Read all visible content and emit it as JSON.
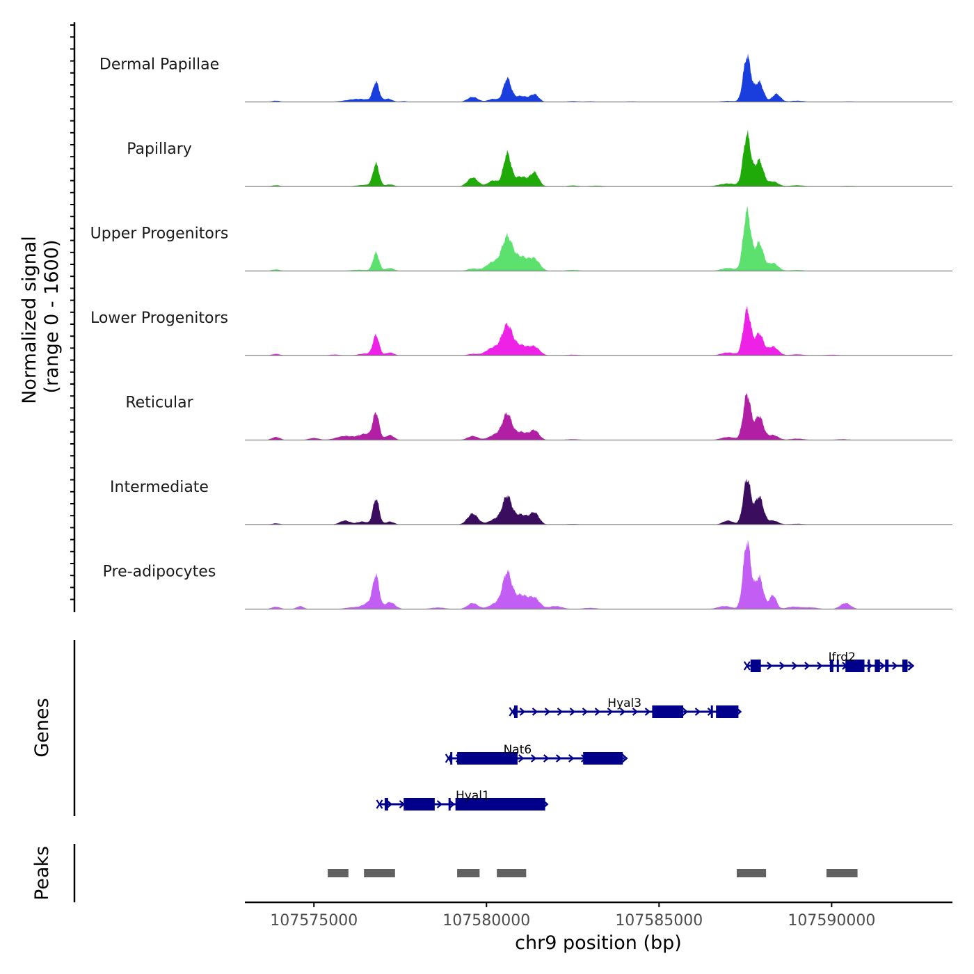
{
  "chart_data": {
    "type": "genome-browser-coverage",
    "chromosome": "chr9",
    "xlim": [
      107573000,
      107593500
    ],
    "coverage": {
      "ylabel_line1": "Normalized signal",
      "ylabel_line2": "(range 0 - 1600)",
      "yrange": [
        0,
        1600
      ],
      "tracks": [
        {
          "name": "Dermal Papillae",
          "color": "#1a3edd",
          "peaks": [
            [
              107573900,
              60,
              120
            ],
            [
              107576300,
              150,
              350
            ],
            [
              107576800,
              950,
              90
            ],
            [
              107577150,
              150,
              120
            ],
            [
              107577600,
              40,
              100
            ],
            [
              107579600,
              250,
              150
            ],
            [
              107580200,
              150,
              150
            ],
            [
              107580600,
              1150,
              110
            ],
            [
              107581000,
              300,
              200
            ],
            [
              107581400,
              350,
              120
            ],
            [
              107582500,
              40,
              150
            ],
            [
              107583000,
              30,
              150
            ],
            [
              107584200,
              25,
              200
            ],
            [
              107587000,
              50,
              200
            ],
            [
              107587550,
              2300,
              110
            ],
            [
              107587900,
              1000,
              120
            ],
            [
              107588400,
              400,
              120
            ],
            [
              107589000,
              60,
              200
            ],
            [
              107590500,
              25,
              200
            ]
          ]
        },
        {
          "name": "Papillary",
          "color": "#1faa0a",
          "peaks": [
            [
              107573900,
              60,
              120
            ],
            [
              107576500,
              80,
              250
            ],
            [
              107576800,
              1100,
              90
            ],
            [
              107577200,
              100,
              120
            ],
            [
              107579600,
              450,
              150
            ],
            [
              107580200,
              300,
              150
            ],
            [
              107580600,
              1600,
              110
            ],
            [
              107581000,
              500,
              200
            ],
            [
              107581400,
              650,
              120
            ],
            [
              107582500,
              50,
              150
            ],
            [
              107583200,
              40,
              200
            ],
            [
              107587000,
              150,
              250
            ],
            [
              107587550,
              2600,
              110
            ],
            [
              107587900,
              1300,
              120
            ],
            [
              107588300,
              250,
              150
            ],
            [
              107589000,
              60,
              200
            ],
            [
              107590500,
              30,
              200
            ]
          ]
        },
        {
          "name": "Upper Progenitors",
          "color": "#5ce06e",
          "peaks": [
            [
              107573900,
              80,
              120
            ],
            [
              107576300,
              60,
              250
            ],
            [
              107576800,
              900,
              90
            ],
            [
              107577200,
              150,
              120
            ],
            [
              107579600,
              120,
              150
            ],
            [
              107580200,
              450,
              200
            ],
            [
              107580600,
              1600,
              150
            ],
            [
              107581000,
              700,
              200
            ],
            [
              107581400,
              550,
              150
            ],
            [
              107582500,
              50,
              200
            ],
            [
              107587000,
              150,
              200
            ],
            [
              107587550,
              3000,
              110
            ],
            [
              107587900,
              1400,
              120
            ],
            [
              107588300,
              400,
              150
            ],
            [
              107589000,
              50,
              200
            ]
          ]
        },
        {
          "name": "Lower Progenitors",
          "color": "#ee22e6",
          "peaks": [
            [
              107573900,
              80,
              120
            ],
            [
              107575600,
              50,
              150
            ],
            [
              107576500,
              100,
              200
            ],
            [
              107576800,
              1000,
              90
            ],
            [
              107577200,
              150,
              120
            ],
            [
              107579600,
              80,
              150
            ],
            [
              107580200,
              400,
              200
            ],
            [
              107580600,
              1450,
              150
            ],
            [
              107581000,
              500,
              200
            ],
            [
              107581400,
              400,
              150
            ],
            [
              107582500,
              40,
              200
            ],
            [
              107587000,
              150,
              200
            ],
            [
              107587550,
              2300,
              110
            ],
            [
              107587900,
              1100,
              120
            ],
            [
              107588300,
              450,
              150
            ],
            [
              107589000,
              60,
              200
            ],
            [
              107590000,
              40,
              200
            ]
          ]
        },
        {
          "name": "Reticular",
          "color": "#b01fa4",
          "peaks": [
            [
              107573900,
              150,
              120
            ],
            [
              107575000,
              100,
              150
            ],
            [
              107575900,
              200,
              250
            ],
            [
              107576500,
              300,
              200
            ],
            [
              107576800,
              1300,
              90
            ],
            [
              107577200,
              250,
              120
            ],
            [
              107579600,
              200,
              150
            ],
            [
              107580300,
              300,
              200
            ],
            [
              107580600,
              1200,
              130
            ],
            [
              107581000,
              400,
              200
            ],
            [
              107581400,
              450,
              130
            ],
            [
              107582500,
              40,
              200
            ],
            [
              107587000,
              150,
              200
            ],
            [
              107587550,
              2300,
              110
            ],
            [
              107587900,
              1200,
              120
            ],
            [
              107588300,
              250,
              150
            ],
            [
              107589000,
              70,
              200
            ],
            [
              107590300,
              40,
              200
            ]
          ]
        },
        {
          "name": "Intermediate",
          "color": "#3a0d5e",
          "peaks": [
            [
              107573900,
              60,
              120
            ],
            [
              107575900,
              200,
              150
            ],
            [
              107576400,
              150,
              150
            ],
            [
              107576800,
              1300,
              90
            ],
            [
              107577200,
              150,
              120
            ],
            [
              107579600,
              550,
              150
            ],
            [
              107580300,
              300,
              200
            ],
            [
              107580600,
              1300,
              130
            ],
            [
              107581000,
              500,
              200
            ],
            [
              107581400,
              550,
              130
            ],
            [
              107582500,
              30,
              200
            ],
            [
              107587000,
              200,
              150
            ],
            [
              107587550,
              2300,
              110
            ],
            [
              107587900,
              1400,
              120
            ],
            [
              107588300,
              200,
              150
            ],
            [
              107589000,
              40,
              200
            ]
          ]
        },
        {
          "name": "Pre-adipocytes",
          "color": "#c35ef4",
          "peaks": [
            [
              107573900,
              120,
              120
            ],
            [
              107574600,
              150,
              100
            ],
            [
              107576200,
              100,
              250
            ],
            [
              107576600,
              300,
              150
            ],
            [
              107576800,
              1600,
              90
            ],
            [
              107577200,
              350,
              150
            ],
            [
              107578600,
              80,
              200
            ],
            [
              107579600,
              300,
              150
            ],
            [
              107580300,
              300,
              200
            ],
            [
              107580600,
              1700,
              130
            ],
            [
              107581000,
              700,
              200
            ],
            [
              107581400,
              500,
              150
            ],
            [
              107582000,
              150,
              200
            ],
            [
              107583000,
              60,
              200
            ],
            [
              107586900,
              150,
              200
            ],
            [
              107587550,
              3400,
              110
            ],
            [
              107587900,
              1600,
              120
            ],
            [
              107588300,
              700,
              100
            ],
            [
              107588900,
              120,
              200
            ],
            [
              107589400,
              80,
              200
            ],
            [
              107590400,
              300,
              150
            ]
          ]
        }
      ]
    },
    "genes": {
      "ylabel": "Genes",
      "color": "#00008b",
      "items": [
        {
          "name": "Ifrd2",
          "start": 107587550,
          "end": 107592300,
          "row": 0,
          "label_pos": 107590300,
          "exons": [
            [
              107587650,
              107587950
            ],
            [
              107589950,
              107590050
            ],
            [
              107590150,
              107590200
            ],
            [
              107590400,
              107590950
            ],
            [
              107591050,
              107591100
            ],
            [
              107591250,
              107591400
            ],
            [
              107591550,
              107591650
            ],
            [
              107592050,
              107592200
            ]
          ]
        },
        {
          "name": "Hyal3",
          "start": 107580750,
          "end": 107587300,
          "row": 1,
          "label_pos": 107584000,
          "exons": [
            [
              107580800,
              107580900
            ],
            [
              107584800,
              107585700
            ],
            [
              107586500,
              107586550
            ],
            [
              107586650,
              107587300
            ]
          ]
        },
        {
          "name": "Nat6",
          "start": 107578900,
          "end": 107584000,
          "row": 2,
          "label_pos": 107580900,
          "exons": [
            [
              107578950,
              107579000
            ],
            [
              107579150,
              107580900
            ],
            [
              107582800,
              107583950
            ]
          ]
        },
        {
          "name": "Hyal1",
          "start": 107576900,
          "end": 107581700,
          "row": 3,
          "label_pos": 107579600,
          "exons": [
            [
              107577050,
              107577150
            ],
            [
              107577600,
              107578500
            ],
            [
              107578900,
              107578950
            ],
            [
              107579100,
              107581700
            ]
          ]
        }
      ]
    },
    "peaks": {
      "ylabel": "Peaks",
      "color": "#616161",
      "regions": [
        [
          107575400,
          107576000
        ],
        [
          107576450,
          107577350
        ],
        [
          107579150,
          107579800
        ],
        [
          107580300,
          107581150
        ],
        [
          107587250,
          107588100
        ],
        [
          107589850,
          107590750
        ]
      ]
    },
    "x_axis": {
      "title": "chr9 position (bp)",
      "ticks": [
        107575000,
        107580000,
        107585000,
        107590000
      ]
    }
  }
}
